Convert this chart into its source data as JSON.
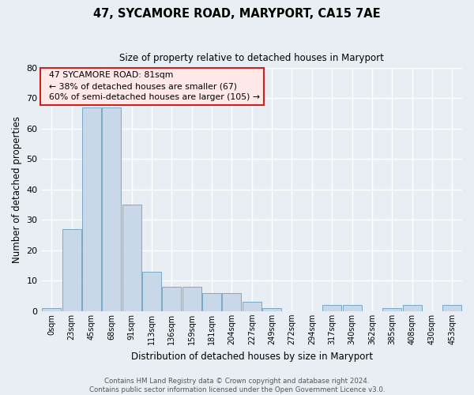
{
  "title1": "47, SYCAMORE ROAD, MARYPORT, CA15 7AE",
  "title2": "Size of property relative to detached houses in Maryport",
  "xlabel": "Distribution of detached houses by size in Maryport",
  "ylabel": "Number of detached properties",
  "footnote": "Contains HM Land Registry data © Crown copyright and database right 2024.\nContains public sector information licensed under the Open Government Licence v3.0.",
  "bin_labels": [
    "0sqm",
    "23sqm",
    "45sqm",
    "68sqm",
    "91sqm",
    "113sqm",
    "136sqm",
    "159sqm",
    "181sqm",
    "204sqm",
    "227sqm",
    "249sqm",
    "272sqm",
    "294sqm",
    "317sqm",
    "340sqm",
    "362sqm",
    "385sqm",
    "408sqm",
    "430sqm",
    "453sqm"
  ],
  "bar_values": [
    1,
    27,
    67,
    67,
    35,
    13,
    8,
    8,
    6,
    6,
    3,
    1,
    0,
    0,
    2,
    2,
    0,
    1,
    2,
    0,
    2
  ],
  "bar_color": "#c8d8e8",
  "bar_edgecolor": "#7aaac8",
  "bg_color": "#e8eef4",
  "grid_color": "#ffffff",
  "ylim": [
    0,
    80
  ],
  "yticks": [
    0,
    10,
    20,
    30,
    40,
    50,
    60,
    70,
    80
  ],
  "annotation_box_text": "  47 SYCAMORE ROAD: 81sqm\n  ← 38% of detached houses are smaller (67)\n  60% of semi-detached houses are larger (105) →",
  "annotation_box_facecolor": "#ffe8e8",
  "annotation_box_edgecolor": "#cc2222",
  "footnote_color": "#555555"
}
